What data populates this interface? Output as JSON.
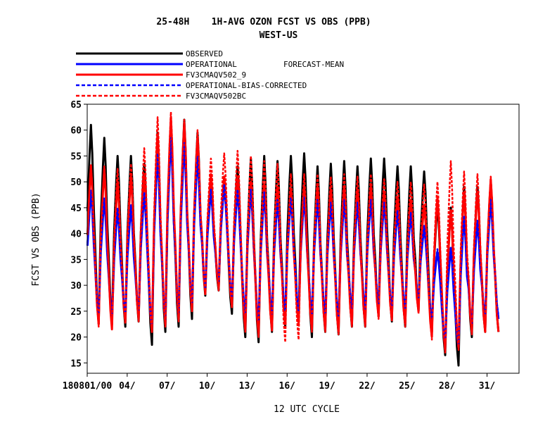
{
  "chart_data": {
    "type": "line",
    "title": "25-48H    1H-AVG OZON FCST VS OBS (PPB)",
    "subtitle": "WEST-US",
    "xlabel": "12 UTC CYCLE",
    "ylabel": "FCST VS OBS (PPB)",
    "legend_note": "FORECAST-MEAN",
    "legend_placement": "top-left",
    "grid": false,
    "ylim": [
      13,
      65
    ],
    "yticks": [
      15,
      20,
      25,
      30,
      35,
      40,
      45,
      50,
      55,
      60,
      65
    ],
    "xlim_days": [
      1,
      33.4
    ],
    "xtick_days": [
      1,
      4,
      7,
      10,
      13,
      16,
      19,
      22,
      25,
      28,
      31
    ],
    "xtick_labels": [
      "180801/00",
      "04/",
      "07/",
      "10/",
      "13/",
      "16/",
      "19/",
      "22/",
      "25/",
      "28/",
      "31/"
    ],
    "daily_cycle": {
      "days": [
        1,
        2,
        3,
        4,
        5,
        6,
        7,
        8,
        9,
        10,
        11,
        12,
        13,
        14,
        15,
        16,
        17,
        18,
        19,
        20,
        21,
        22,
        23,
        24,
        25,
        26,
        27,
        28,
        29,
        30,
        31,
        32,
        33
      ]
    },
    "series": [
      {
        "name": "OBSERVED",
        "color": "#000000",
        "dash": "solid",
        "daily_max": [
          61,
          58.5,
          55,
          55,
          53.5,
          59.5,
          60,
          62,
          59.5,
          51,
          51,
          53,
          54.5,
          55,
          54,
          55,
          55.5,
          53,
          53.5,
          54,
          53,
          54.5,
          54.5,
          53,
          53,
          52,
          45.5,
          45,
          49,
          49,
          50
        ],
        "daily_min": [
          24,
          22.5,
          22.5,
          22,
          23,
          18.5,
          21,
          22,
          23.5,
          28,
          29,
          24.5,
          20,
          19,
          21,
          22,
          23,
          20,
          21,
          20.5,
          22,
          22,
          24,
          23,
          22,
          25,
          21,
          16.5,
          14.5,
          20,
          21
        ]
      },
      {
        "name": "OPERATIONAL",
        "color": "#0000ff",
        "dash": "solid",
        "daily_max": [
          48,
          46.5,
          44.5,
          45,
          47.5,
          55,
          58,
          57,
          54.5,
          48,
          49,
          48,
          48,
          47.5,
          46,
          46.5,
          46.5,
          46,
          45.5,
          46,
          45.5,
          46,
          45.5,
          44,
          43.5,
          41,
          36.5,
          37,
          43,
          42,
          46
        ],
        "daily_min": [
          25,
          24,
          23.5,
          24,
          24.5,
          21.5,
          23,
          24,
          26,
          29,
          30,
          27,
          24,
          22.5,
          24,
          24.5,
          24.5,
          24,
          24,
          23.5,
          25,
          25,
          26,
          25,
          25,
          27,
          23,
          19,
          18,
          22,
          23.5
        ]
      },
      {
        "name": "FV3CMAQV502_9",
        "color": "#ff0000",
        "dash": "solid",
        "daily_max": [
          53,
          52.5,
          50,
          51,
          51.5,
          59,
          62.5,
          61.5,
          58.5,
          51.5,
          51,
          51,
          50,
          49.5,
          49,
          48.5,
          49,
          49,
          48.5,
          49,
          48.5,
          49,
          48,
          47,
          46.5,
          45.5,
          47,
          44.5,
          48,
          48,
          50.5
        ],
        "daily_min": [
          23.5,
          22.5,
          21.5,
          23,
          23.5,
          21,
          22.5,
          23.5,
          25,
          28.5,
          29.5,
          26,
          21.5,
          20.5,
          21.5,
          22.5,
          22.5,
          21.5,
          21.5,
          21,
          22.5,
          22.5,
          24,
          23.5,
          22.5,
          25,
          20,
          17.5,
          18,
          21,
          21
        ]
      },
      {
        "name": "OPERATIONAL-BIAS-CORRECTED",
        "color": "#0000ff",
        "dash": "dashed",
        "daily_max": [
          48.5,
          47,
          45,
          45.5,
          48,
          55.5,
          58.5,
          57.5,
          55,
          48.5,
          49.5,
          48.5,
          48.5,
          48,
          46.5,
          47,
          47,
          46.5,
          46,
          46.5,
          46,
          46.5,
          46,
          44.5,
          44,
          41.5,
          37,
          37.5,
          43.5,
          42.5,
          46.5
        ],
        "daily_min": [
          25.5,
          24.5,
          24,
          24.5,
          25,
          22,
          23.5,
          24.5,
          26.5,
          29.5,
          30.5,
          27.5,
          24.5,
          23,
          24.5,
          25,
          25,
          24.5,
          24.5,
          24,
          25.5,
          25.5,
          26.5,
          25.5,
          25.5,
          27.5,
          23.5,
          19.5,
          18.5,
          22.5,
          24
        ]
      },
      {
        "name": "FV3CMAQV502BC",
        "color": "#ff0000",
        "dash": "dashed",
        "daily_max": [
          53.5,
          53,
          52.5,
          53.5,
          56.5,
          62.5,
          63.5,
          62,
          60,
          54.5,
          55.5,
          56,
          55,
          54,
          53.5,
          51.5,
          51.5,
          51.5,
          51,
          51.5,
          51,
          51.5,
          50.5,
          50,
          50,
          49.5,
          50,
          54,
          52,
          51.5,
          51
        ],
        "daily_min": [
          23,
          22,
          21.5,
          22.5,
          23,
          21,
          22,
          23,
          25,
          28,
          29,
          25.5,
          21,
          20,
          21,
          19,
          19.5,
          21,
          21,
          20.5,
          22,
          22,
          23.5,
          23,
          22,
          24.5,
          19.5,
          17,
          17.5,
          20.5,
          21
        ]
      }
    ]
  }
}
